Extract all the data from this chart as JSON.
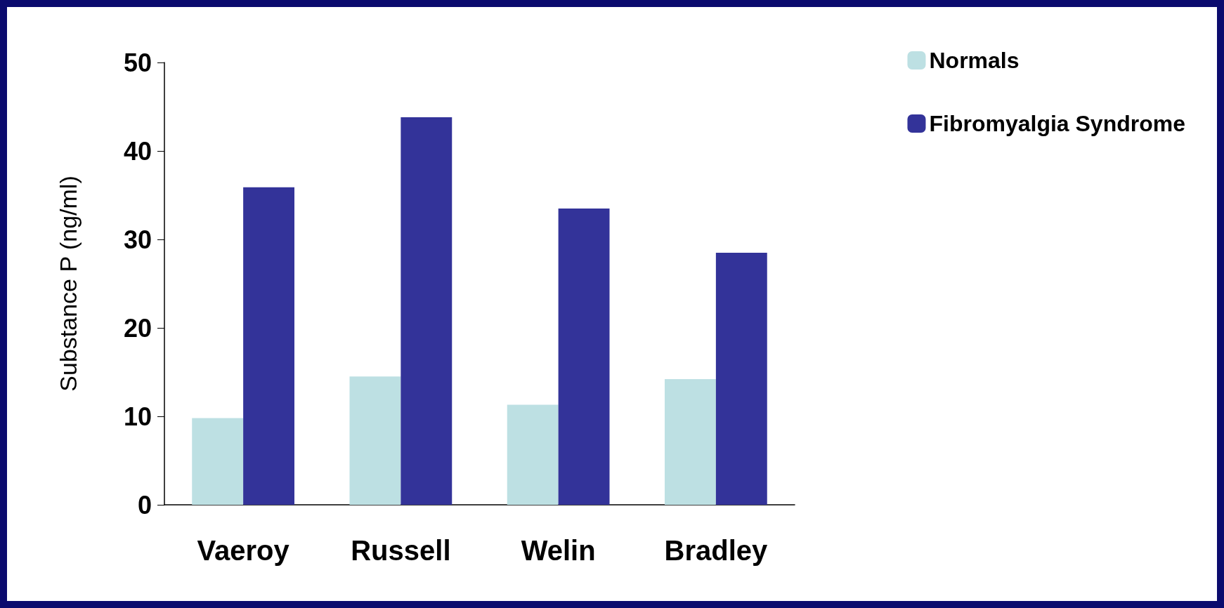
{
  "chart_data": {
    "type": "bar",
    "ylabel": "Substance P (ng/ml)",
    "categories": [
      "Vaeroy",
      "Russell",
      "Welin",
      "Bradley"
    ],
    "series": [
      {
        "name": "Normals",
        "color": "#bde0e3",
        "values": [
          9.8,
          14.5,
          11.3,
          14.2
        ]
      },
      {
        "name": "Fibromyalgia Syndrome",
        "color": "#333399",
        "values": [
          35.9,
          43.8,
          33.5,
          28.5
        ]
      }
    ],
    "ylim": [
      0,
      50
    ],
    "yticks": [
      0,
      10,
      20,
      30,
      40,
      50
    ],
    "grid": false,
    "legend": "top right"
  }
}
